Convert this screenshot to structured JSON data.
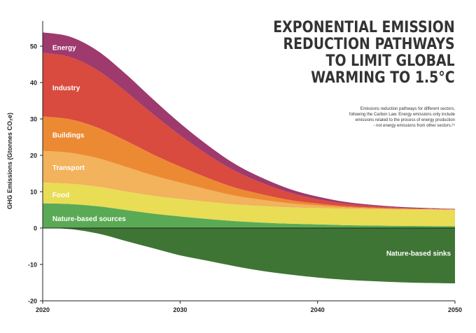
{
  "chart_data": {
    "type": "area",
    "title": "EXPONENTIAL EMISSION REDUCTION PATHWAYS TO LIMIT GLOBAL WARMING TO 1.5°C",
    "title_lines": [
      "EXPONENTIAL EMISSION",
      "REDUCTION PATHWAYS",
      "TO LIMIT GLOBAL",
      "WARMING TO 1.5°C"
    ],
    "subtitle": "Emissions reduction pathways for different sectors, following the Carbon Law. Energy emissions only include emissions related to the process of energy production - not energy emissions from other sectors.",
    "subtitle_lines": [
      "Emissions reduction pathways for different sectors,",
      "following the Carbon Law. Energy emissions only include",
      "emissions related to the process of energy production",
      "- not energy emissions from other sectors.²⁹"
    ],
    "xlabel": "",
    "ylabel": "GHG Emissions (Gtonnes CO₂e)",
    "xlim": [
      2020,
      2050
    ],
    "ylim": [
      -20,
      55
    ],
    "x_ticks": [
      2020,
      2030,
      2040,
      2050
    ],
    "x_tick_labels": [
      "2020",
      "2030",
      "2040",
      "2050"
    ],
    "y_ticks": [
      -20,
      -10,
      0,
      10,
      20,
      30,
      40,
      50
    ],
    "y_tick_labels": [
      "-20",
      "-10",
      "0",
      "10",
      "20",
      "30",
      "40",
      "50"
    ],
    "x": [
      2020,
      2022,
      2024,
      2026,
      2028,
      2030,
      2032,
      2034,
      2036,
      2038,
      2040,
      2042,
      2044,
      2046,
      2048,
      2050
    ],
    "series": [
      {
        "name": "Nature-based sinks",
        "color": "#3f7534",
        "label_year": 2045,
        "label_value": -7,
        "values": [
          0,
          -0.3,
          -1.5,
          -3.5,
          -5.5,
          -7.5,
          -9,
          -10.5,
          -11.8,
          -12.8,
          -13.6,
          -14.2,
          -14.6,
          -14.9,
          -15.1,
          -15.2
        ]
      },
      {
        "name": "Nature-based sources",
        "color": "#5aaa55",
        "label_year": 2020.5,
        "label_value": 2.5,
        "values": [
          6.8,
          6.6,
          6.0,
          5.0,
          4.0,
          3.2,
          2.5,
          1.9,
          1.5,
          1.2,
          1.0,
          0.8,
          0.7,
          0.6,
          0.55,
          0.5
        ]
      },
      {
        "name": "Food",
        "color": "#e8dd55",
        "label_year": 2020.5,
        "label_value": 9,
        "values": [
          5.7,
          5.6,
          5.4,
          5.1,
          4.9,
          4.8,
          4.7,
          4.6,
          4.55,
          4.5,
          4.5,
          4.5,
          4.5,
          4.5,
          4.5,
          4.5
        ]
      },
      {
        "name": "Transport",
        "color": "#f3b25c",
        "label_year": 2020.5,
        "label_value": 16.5,
        "values": [
          8.7,
          8.5,
          7.8,
          6.8,
          5.6,
          4.5,
          3.4,
          2.4,
          1.7,
          1.1,
          0.7,
          0.4,
          0.25,
          0.15,
          0.1,
          0.05
        ]
      },
      {
        "name": "Buildings",
        "color": "#ec8a33",
        "label_year": 2020.5,
        "label_value": 25.5,
        "values": [
          9.5,
          9.2,
          8.4,
          7.2,
          5.8,
          4.4,
          3.2,
          2.2,
          1.5,
          0.9,
          0.55,
          0.3,
          0.18,
          0.1,
          0.06,
          0.03
        ]
      },
      {
        "name": "Industry",
        "color": "#d94a3f",
        "label_year": 2020.5,
        "label_value": 38.5,
        "values": [
          17.5,
          17.1,
          15.8,
          13.6,
          11.1,
          8.6,
          6.4,
          4.6,
          3.1,
          2.0,
          1.2,
          0.7,
          0.4,
          0.22,
          0.12,
          0.07
        ]
      },
      {
        "name": "Energy",
        "color": "#9e3a6d",
        "label_year": 2020.5,
        "label_value": 49.5,
        "values": [
          5.6,
          5.6,
          5.3,
          4.8,
          4.1,
          3.3,
          2.6,
          1.9,
          1.4,
          1.0,
          0.7,
          0.5,
          0.35,
          0.25,
          0.18,
          0.12
        ]
      }
    ]
  }
}
